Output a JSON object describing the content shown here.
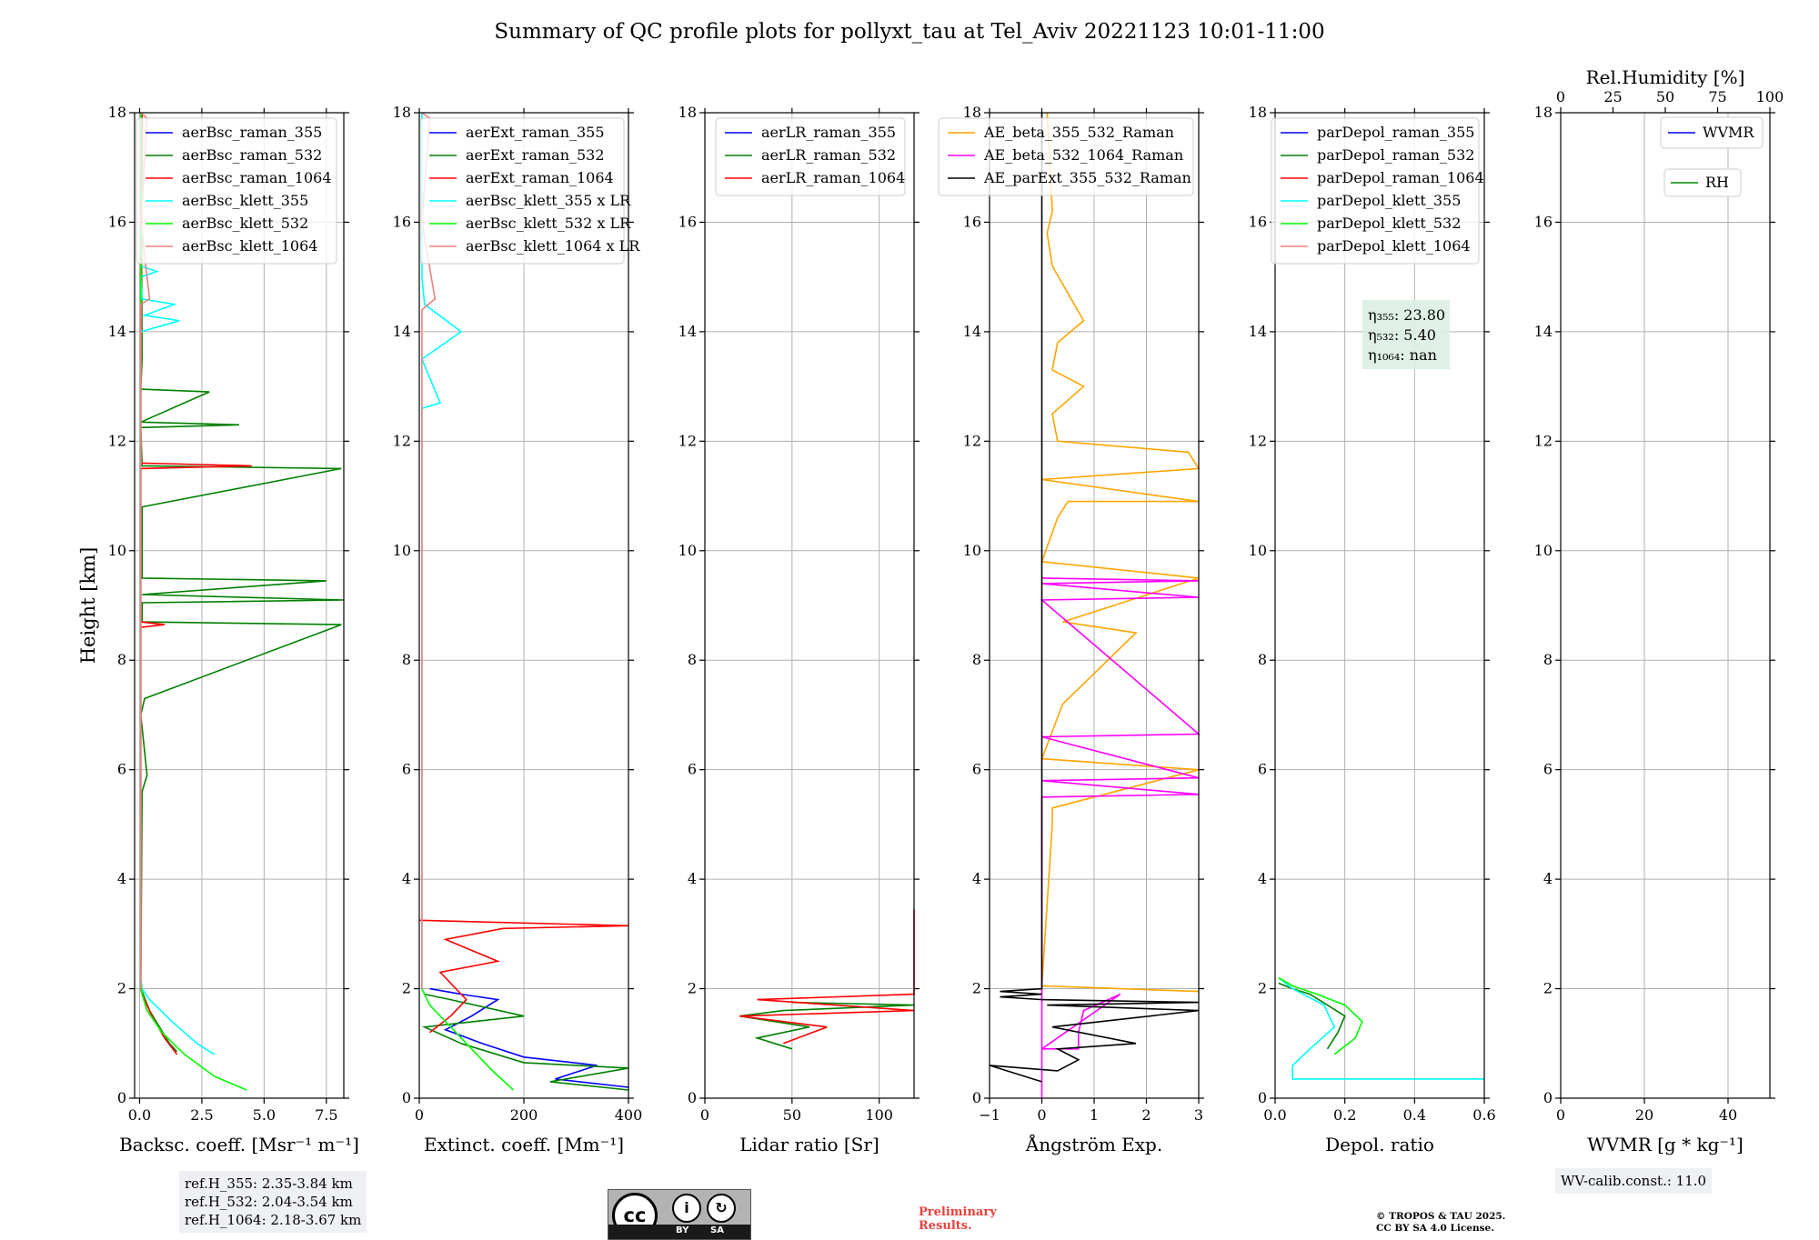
{
  "title": "Summary of QC profile plots for pollyxt_tau at Tel_Aviv 20221123 10:01-11:00",
  "y_axis_label": "Height [km]",
  "colors": {
    "blue": "#0000ff",
    "green": "#008000",
    "red": "#ff0000",
    "cyan": "#00ffff",
    "lime": "#00ff00",
    "salmon": "#f08080",
    "orange": "#ffa500",
    "magenta": "#ff00ff",
    "black": "#000000",
    "grid": "#b0b0b0"
  },
  "chart_data": [
    {
      "type": "line",
      "xlabel": "Backsc. coeff. [Msr⁻¹ m⁻¹]",
      "xlim": [
        -0.2,
        8.2
      ],
      "xticks": [
        0,
        2.5,
        5,
        7.5
      ],
      "xticklabels": [
        "0.0",
        "2.5",
        "5.0",
        "7.5"
      ],
      "ylim": [
        0,
        18
      ],
      "yticks": [
        0,
        2,
        4,
        6,
        8,
        10,
        12,
        14,
        16,
        18
      ],
      "yticklabels": [
        "0",
        "2",
        "4",
        "6",
        "8",
        "10",
        "12",
        "14",
        "16",
        "18"
      ],
      "legend": "top-left",
      "series": [
        {
          "name": "aerBsc_raman_355",
          "color": "blue",
          "x": [
            0,
            0
          ],
          "y": [
            0,
            0
          ]
        },
        {
          "name": "aerBsc_raman_532",
          "color": "green",
          "x": [
            1.5,
            1.2,
            0.8,
            0.4,
            0.1,
            0.05,
            0.1,
            0.3,
            0.05,
            0.2,
            8.1,
            0.1,
            0.1,
            0.1,
            8.2,
            0.1,
            7.5,
            0.1,
            0.1,
            8.1,
            0.1,
            0.05,
            4.0,
            0.05,
            2.8,
            0.05,
            0.1,
            0.05
          ],
          "y": [
            0.85,
            1.0,
            1.3,
            1.6,
            1.95,
            2.1,
            5.6,
            5.9,
            7.0,
            7.3,
            8.65,
            8.7,
            9.0,
            9.05,
            9.1,
            9.2,
            9.45,
            9.5,
            10.8,
            11.5,
            11.55,
            12.25,
            12.3,
            12.35,
            12.9,
            12.95,
            13.5,
            18
          ]
        },
        {
          "name": "aerBsc_raman_1064",
          "color": "red",
          "x": [
            1.5,
            1.0,
            0.5,
            0.1,
            0.05,
            0.05,
            1.0,
            0.05,
            0.05,
            4.5,
            0.05,
            0.05,
            0.1
          ],
          "y": [
            0.8,
            1.1,
            1.5,
            1.9,
            2.0,
            8.6,
            8.65,
            8.7,
            11.5,
            11.55,
            11.6,
            13.0,
            18
          ]
        },
        {
          "name": "aerBsc_klett_355",
          "color": "cyan",
          "x": [
            3.0,
            2.3,
            1.3,
            0.4,
            0.1,
            0.05,
            0.05,
            1.6,
            0.2,
            1.4,
            0.1,
            0.05,
            0.7,
            0.05,
            0.05
          ],
          "y": [
            0.8,
            1.0,
            1.4,
            1.8,
            2.0,
            2.2,
            14.0,
            14.2,
            14.3,
            14.5,
            14.6,
            15.0,
            15.1,
            15.2,
            18
          ]
        },
        {
          "name": "aerBsc_klett_532",
          "color": "lime",
          "x": [
            4.3,
            3.0,
            1.8,
            0.9,
            0.3,
            0.1,
            0.05,
            0.05
          ],
          "y": [
            0.15,
            0.4,
            0.8,
            1.2,
            1.6,
            1.9,
            2.1,
            18
          ]
        },
        {
          "name": "aerBsc_klett_1064",
          "color": "salmon",
          "x": [
            0.05,
            0.05,
            0.4,
            0.05,
            0.3,
            0.05
          ],
          "y": [
            2.0,
            14.5,
            14.6,
            16.0,
            17.9,
            18
          ]
        }
      ],
      "infobox": [
        "ref.H_355: 2.35-3.84 km",
        "ref.H_532: 2.04-3.54 km",
        "ref.H_1064: 2.18-3.67 km"
      ]
    },
    {
      "type": "line",
      "xlabel": "Extinct. coeff. [Mm⁻¹]",
      "xlim": [
        0,
        400
      ],
      "xticks": [
        0,
        200,
        400
      ],
      "xticklabels": [
        "0",
        "200",
        "400"
      ],
      "ylim": [
        0,
        18
      ],
      "yticks": [
        0,
        2,
        4,
        6,
        8,
        10,
        12,
        14,
        16,
        18
      ],
      "yticklabels": [
        "0",
        "2",
        "4",
        "6",
        "8",
        "10",
        "12",
        "14",
        "16",
        "18"
      ],
      "legend": "top-left",
      "series": [
        {
          "name": "aerExt_raman_355",
          "color": "blue",
          "x": [
            400,
            260,
            340,
            200,
            120,
            50,
            100,
            150,
            80,
            20
          ],
          "y": [
            0.2,
            0.35,
            0.6,
            0.75,
            1.0,
            1.25,
            1.5,
            1.8,
            1.9,
            2.0
          ]
        },
        {
          "name": "aerExt_raman_532",
          "color": "green",
          "x": [
            400,
            250,
            400,
            300,
            200,
            80,
            10,
            200,
            60,
            10
          ],
          "y": [
            0.15,
            0.3,
            0.55,
            0.6,
            0.65,
            1.0,
            1.3,
            1.5,
            1.8,
            1.9
          ]
        },
        {
          "name": "aerExt_raman_1064",
          "color": "red",
          "x": [
            20,
            60,
            90,
            60,
            40,
            150,
            50,
            160,
            400,
            0
          ],
          "y": [
            1.2,
            1.5,
            1.8,
            2.1,
            2.3,
            2.5,
            2.9,
            3.1,
            3.15,
            3.25
          ]
        },
        {
          "name": "aerBsc_klett_355 x LR",
          "color": "cyan",
          "x": [
            5,
            5,
            40,
            5,
            80,
            10,
            5,
            5
          ],
          "y": [
            2.0,
            12.6,
            12.7,
            13.5,
            14.0,
            14.5,
            15.0,
            18
          ]
        },
        {
          "name": "aerBsc_klett_532 x LR",
          "color": "lime",
          "x": [
            180,
            140,
            100,
            60,
            20,
            5
          ],
          "y": [
            0.15,
            0.5,
            0.9,
            1.3,
            1.7,
            2.0
          ]
        },
        {
          "name": "aerBsc_klett_1064 x LR",
          "color": "salmon",
          "x": [
            5,
            5,
            30,
            5,
            20,
            5
          ],
          "y": [
            2.0,
            14.4,
            14.6,
            16.0,
            17.9,
            18
          ]
        }
      ]
    },
    {
      "type": "line",
      "xlabel": "Lidar ratio [Sr]",
      "xlim": [
        0,
        120
      ],
      "xticks": [
        0,
        50,
        100
      ],
      "xticklabels": [
        "0",
        "50",
        "100"
      ],
      "ylim": [
        0,
        18
      ],
      "yticks": [
        0,
        2,
        4,
        6,
        8,
        10,
        12,
        14,
        16,
        18
      ],
      "yticklabels": [
        "0",
        "2",
        "4",
        "6",
        "8",
        "10",
        "12",
        "14",
        "16",
        "18"
      ],
      "legend": "top-left",
      "series": [
        {
          "name": "aerLR_raman_355",
          "color": "blue",
          "x": [
            0,
            0
          ],
          "y": [
            0,
            0
          ]
        },
        {
          "name": "aerLR_raman_532",
          "color": "green",
          "x": [
            50,
            30,
            60,
            20,
            45,
            120,
            50
          ],
          "y": [
            0.9,
            1.1,
            1.3,
            1.5,
            1.6,
            1.7,
            1.75
          ]
        },
        {
          "name": "aerLR_raman_1064",
          "color": "red",
          "x": [
            45,
            70,
            20,
            120,
            30,
            120,
            120
          ],
          "y": [
            1.0,
            1.3,
            1.5,
            1.6,
            1.8,
            1.9,
            3.45
          ]
        }
      ]
    },
    {
      "type": "line",
      "xlabel": "Ångström Exp.",
      "xlim": [
        -1,
        3
      ],
      "xticks": [
        -1,
        0,
        1,
        2,
        3
      ],
      "xticklabels": [
        "−1",
        "0",
        "1",
        "2",
        "3"
      ],
      "ylim": [
        0,
        18
      ],
      "yticks": [
        0,
        2,
        4,
        6,
        8,
        10,
        12,
        14,
        16,
        18
      ],
      "yticklabels": [
        "0",
        "2",
        "4",
        "6",
        "8",
        "10",
        "12",
        "14",
        "16",
        "18"
      ],
      "legend": "top-left",
      "series": [
        {
          "name": "AE_beta_355_532_Raman",
          "color": "orange",
          "x": [
            0,
            0,
            3,
            0,
            0.2,
            0.2,
            3,
            0,
            0.4,
            1.8,
            0.4,
            3,
            0,
            0.3,
            0.5,
            3,
            0,
            3,
            2.8,
            0.3,
            0.2,
            0.8,
            0.2,
            0.3,
            0.8,
            0.2,
            0.1,
            0.2,
            0.1
          ],
          "y": [
            1.9,
            2.05,
            1.95,
            2.05,
            5.0,
            5.3,
            6.0,
            6.2,
            7.2,
            8.5,
            8.7,
            9.5,
            9.8,
            10.6,
            10.9,
            10.9,
            11.3,
            11.5,
            11.8,
            12.0,
            12.5,
            13.0,
            13.3,
            13.8,
            14.2,
            15.2,
            15.8,
            16.2,
            18
          ]
        },
        {
          "name": "AE_beta_532_1064_Raman",
          "color": "magenta",
          "x": [
            0,
            0,
            1.5,
            0.8,
            0.7,
            0.7,
            0,
            0,
            3,
            0,
            3,
            0,
            3,
            0,
            3,
            0,
            3,
            0
          ],
          "y": [
            0,
            0.9,
            1.9,
            1.6,
            1.2,
            0.9,
            0.9,
            5.5,
            5.55,
            5.8,
            5.85,
            6.6,
            6.65,
            9.1,
            9.15,
            9.4,
            9.45,
            9.5
          ]
        },
        {
          "name": "AE_parExt_355_532_Raman",
          "color": "black",
          "x": [
            0,
            -1,
            0.3,
            0.7,
            0.3,
            1.8,
            0.2,
            3,
            0.1,
            3,
            0,
            -0.8,
            0,
            -0.8,
            0,
            0
          ],
          "y": [
            0.3,
            0.6,
            0.5,
            0.7,
            0.9,
            1.0,
            1.3,
            1.6,
            1.7,
            1.75,
            1.8,
            1.85,
            1.9,
            1.95,
            2.0,
            18
          ]
        }
      ]
    },
    {
      "type": "line",
      "xlabel": "Depol. ratio",
      "xlim": [
        0,
        0.6
      ],
      "xticks": [
        0,
        0.2,
        0.4,
        0.6
      ],
      "xticklabels": [
        "0.0",
        "0.2",
        "0.4",
        "0.6"
      ],
      "ylim": [
        0,
        18
      ],
      "yticks": [
        0,
        2,
        4,
        6,
        8,
        10,
        12,
        14,
        16,
        18
      ],
      "yticklabels": [
        "0",
        "2",
        "4",
        "6",
        "8",
        "10",
        "12",
        "14",
        "16",
        "18"
      ],
      "legend": "top-left",
      "series": [
        {
          "name": "parDepol_raman_355",
          "color": "blue",
          "x": [
            0,
            0
          ],
          "y": [
            0,
            0
          ]
        },
        {
          "name": "parDepol_raman_532",
          "color": "green",
          "x": [
            0.15,
            0.18,
            0.2,
            0.15,
            0.1,
            0.05,
            0.01
          ],
          "y": [
            0.9,
            1.2,
            1.5,
            1.7,
            1.9,
            2.0,
            2.1
          ]
        },
        {
          "name": "parDepol_raman_1064",
          "color": "red",
          "x": [
            0,
            0
          ],
          "y": [
            0,
            0
          ]
        },
        {
          "name": "parDepol_klett_355",
          "color": "cyan",
          "x": [
            0.6,
            0.05,
            0.05,
            0.1,
            0.17,
            0.14,
            0.05,
            0.01
          ],
          "y": [
            0.35,
            0.35,
            0.6,
            0.9,
            1.3,
            1.7,
            2.0,
            2.2
          ]
        },
        {
          "name": "parDepol_klett_532",
          "color": "lime",
          "x": [
            0.17,
            0.23,
            0.25,
            0.2,
            0.12,
            0.05,
            0.01
          ],
          "y": [
            0.8,
            1.1,
            1.4,
            1.7,
            1.9,
            2.05,
            2.2
          ]
        },
        {
          "name": "parDepol_klett_1064",
          "color": "salmon",
          "x": [
            0,
            0
          ],
          "y": [
            0,
            0
          ]
        }
      ],
      "annotations": [
        "η₃₅₅: 23.80",
        "η₅₃₂: 5.40",
        "η₁₀₆₄: nan"
      ]
    },
    {
      "type": "line",
      "xlabel": "WVMR [g * kg⁻¹]",
      "xlim": [
        0,
        50
      ],
      "xticks": [
        0,
        20,
        40
      ],
      "xticklabels": [
        "0",
        "20",
        "40"
      ],
      "secondary_xlabel": "Rel.Humidity [%]",
      "secondary_xlim": [
        0,
        100
      ],
      "secondary_xticks": [
        0,
        25,
        50,
        75,
        100
      ],
      "secondary_xticklabels": [
        "0",
        "25",
        "50",
        "75",
        "100"
      ],
      "ylim": [
        0,
        18
      ],
      "yticks": [
        0,
        2,
        4,
        6,
        8,
        10,
        12,
        14,
        16,
        18
      ],
      "yticklabels": [
        "0",
        "2",
        "4",
        "6",
        "8",
        "10",
        "12",
        "14",
        "16",
        "18"
      ],
      "legend": "top-right",
      "series": [
        {
          "name": "WVMR",
          "color": "blue",
          "x": [
            0,
            0
          ],
          "y": [
            0,
            0
          ]
        },
        {
          "name": "RH",
          "color": "green",
          "x": [
            0,
            0
          ],
          "y": [
            0,
            0
          ]
        }
      ],
      "infobox": [
        "WV-calib.const.: 11.0"
      ]
    }
  ],
  "footer": {
    "preliminary": [
      "Preliminary",
      "Results."
    ],
    "copyright": [
      "© TROPOS & TAU 2025.",
      "CC BY SA 4.0 License."
    ],
    "license_badge": {
      "cc": "cc",
      "by": "BY",
      "sa": "SA"
    }
  }
}
